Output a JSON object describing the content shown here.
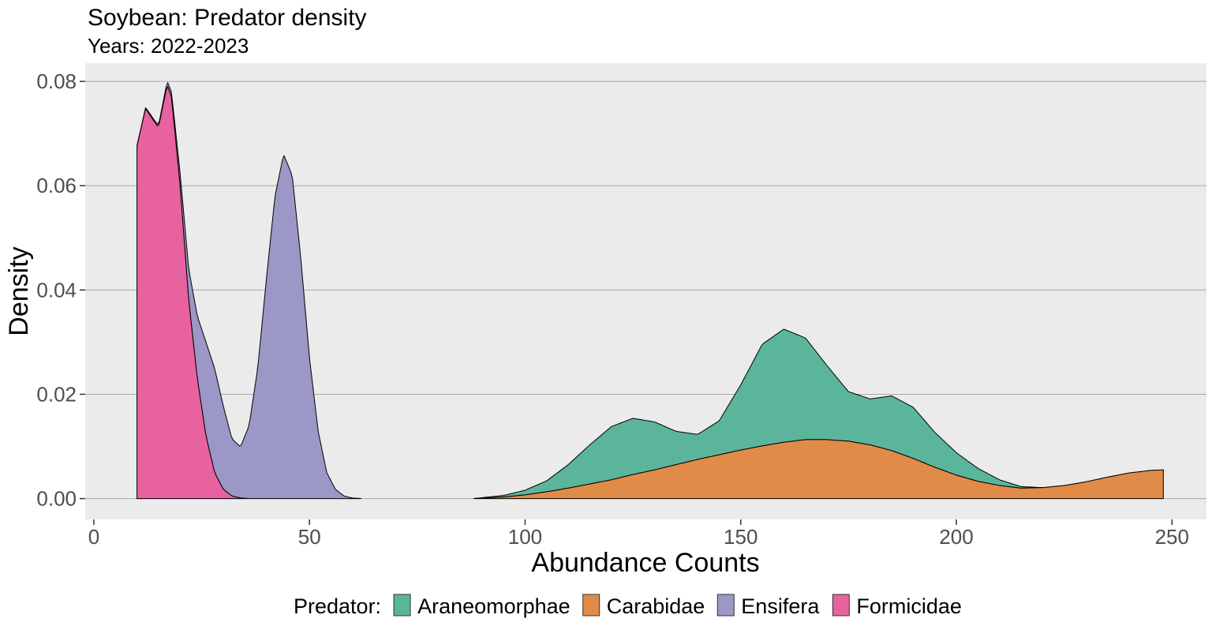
{
  "chart_data": {
    "type": "area",
    "title": "Soybean: Predator density",
    "subtitle": "Years: 2022-2023",
    "xlabel": "Abundance Counts",
    "ylabel": "Density",
    "xlim": [
      -2,
      258
    ],
    "ylim": [
      -0.004,
      0.0835
    ],
    "x_ticks": [
      0,
      50,
      100,
      150,
      200,
      250
    ],
    "x_tick_labels": [
      "0",
      "50",
      "100",
      "150",
      "200",
      "250"
    ],
    "y_ticks": [
      0,
      0.02,
      0.04,
      0.06,
      0.08
    ],
    "y_tick_labels": [
      "0.00",
      "0.02",
      "0.04",
      "0.06",
      "0.08"
    ],
    "grid": true,
    "stacked": true,
    "legend": {
      "title": "Predator:",
      "placement": "bottom"
    },
    "series": [
      {
        "name": "Araneomorphae",
        "color": "#5BB59B",
        "points": [
          [
            88,
            0.0
          ],
          [
            95,
            0.0003
          ],
          [
            100,
            0.0009
          ],
          [
            105,
            0.0021
          ],
          [
            110,
            0.0045
          ],
          [
            115,
            0.0075
          ],
          [
            120,
            0.0102
          ],
          [
            125,
            0.0108
          ],
          [
            130,
            0.0092
          ],
          [
            135,
            0.0064
          ],
          [
            140,
            0.0048
          ],
          [
            145,
            0.0065
          ],
          [
            150,
            0.0125
          ],
          [
            155,
            0.0195
          ],
          [
            160,
            0.0217
          ],
          [
            165,
            0.0195
          ],
          [
            170,
            0.0142
          ],
          [
            175,
            0.0095
          ],
          [
            180,
            0.0088
          ],
          [
            185,
            0.0105
          ],
          [
            190,
            0.0098
          ],
          [
            195,
            0.0067
          ],
          [
            200,
            0.0043
          ],
          [
            205,
            0.0025
          ],
          [
            210,
            0.0011
          ],
          [
            215,
            0.0003
          ],
          [
            220,
            0.0
          ],
          [
            248,
            0.0
          ]
        ]
      },
      {
        "name": "Carabidae",
        "color": "#E08B48",
        "points": [
          [
            88,
            0.0
          ],
          [
            95,
            0.0003
          ],
          [
            100,
            0.0007
          ],
          [
            105,
            0.0013
          ],
          [
            110,
            0.002
          ],
          [
            115,
            0.0028
          ],
          [
            120,
            0.0036
          ],
          [
            125,
            0.0046
          ],
          [
            130,
            0.0055
          ],
          [
            135,
            0.0065
          ],
          [
            140,
            0.0075
          ],
          [
            145,
            0.0084
          ],
          [
            150,
            0.0093
          ],
          [
            155,
            0.0101
          ],
          [
            160,
            0.0108
          ],
          [
            165,
            0.0113
          ],
          [
            170,
            0.0113
          ],
          [
            175,
            0.011
          ],
          [
            180,
            0.0103
          ],
          [
            185,
            0.0092
          ],
          [
            190,
            0.0077
          ],
          [
            195,
            0.006
          ],
          [
            200,
            0.0045
          ],
          [
            205,
            0.0033
          ],
          [
            210,
            0.0025
          ],
          [
            215,
            0.002
          ],
          [
            220,
            0.0021
          ],
          [
            225,
            0.0025
          ],
          [
            230,
            0.0032
          ],
          [
            235,
            0.0041
          ],
          [
            240,
            0.0049
          ],
          [
            245,
            0.0054
          ],
          [
            248,
            0.0055
          ]
        ]
      },
      {
        "name": "Ensifera",
        "color": "#9B97C6",
        "points": [
          [
            10,
            0.0001
          ],
          [
            12,
            0.0002
          ],
          [
            14,
            0.0003
          ],
          [
            16,
            0.0005
          ],
          [
            18,
            0.001
          ],
          [
            20,
            0.0025
          ],
          [
            22,
            0.006
          ],
          [
            24,
            0.012
          ],
          [
            26,
            0.018
          ],
          [
            28,
            0.02
          ],
          [
            30,
            0.016
          ],
          [
            32,
            0.011
          ],
          [
            34,
            0.0098
          ],
          [
            36,
            0.014
          ],
          [
            38,
            0.025
          ],
          [
            40,
            0.042
          ],
          [
            42,
            0.058
          ],
          [
            44,
            0.066
          ],
          [
            46,
            0.062
          ],
          [
            48,
            0.046
          ],
          [
            50,
            0.027
          ],
          [
            52,
            0.013
          ],
          [
            54,
            0.005
          ],
          [
            56,
            0.0018
          ],
          [
            58,
            0.0005
          ],
          [
            60,
            0.0001
          ],
          [
            62,
            0.0
          ]
        ]
      },
      {
        "name": "Formicidae",
        "color": "#E8629F",
        "points": [
          [
            10,
            0.0676
          ],
          [
            12,
            0.0748
          ],
          [
            14,
            0.0723
          ],
          [
            15,
            0.0712
          ],
          [
            17,
            0.0793
          ],
          [
            18,
            0.077
          ],
          [
            20,
            0.06
          ],
          [
            22,
            0.038
          ],
          [
            24,
            0.023
          ],
          [
            26,
            0.012
          ],
          [
            28,
            0.005
          ],
          [
            30,
            0.0018
          ],
          [
            32,
            0.0005
          ],
          [
            34,
            0.0001
          ],
          [
            36,
            0.0
          ]
        ]
      }
    ]
  }
}
